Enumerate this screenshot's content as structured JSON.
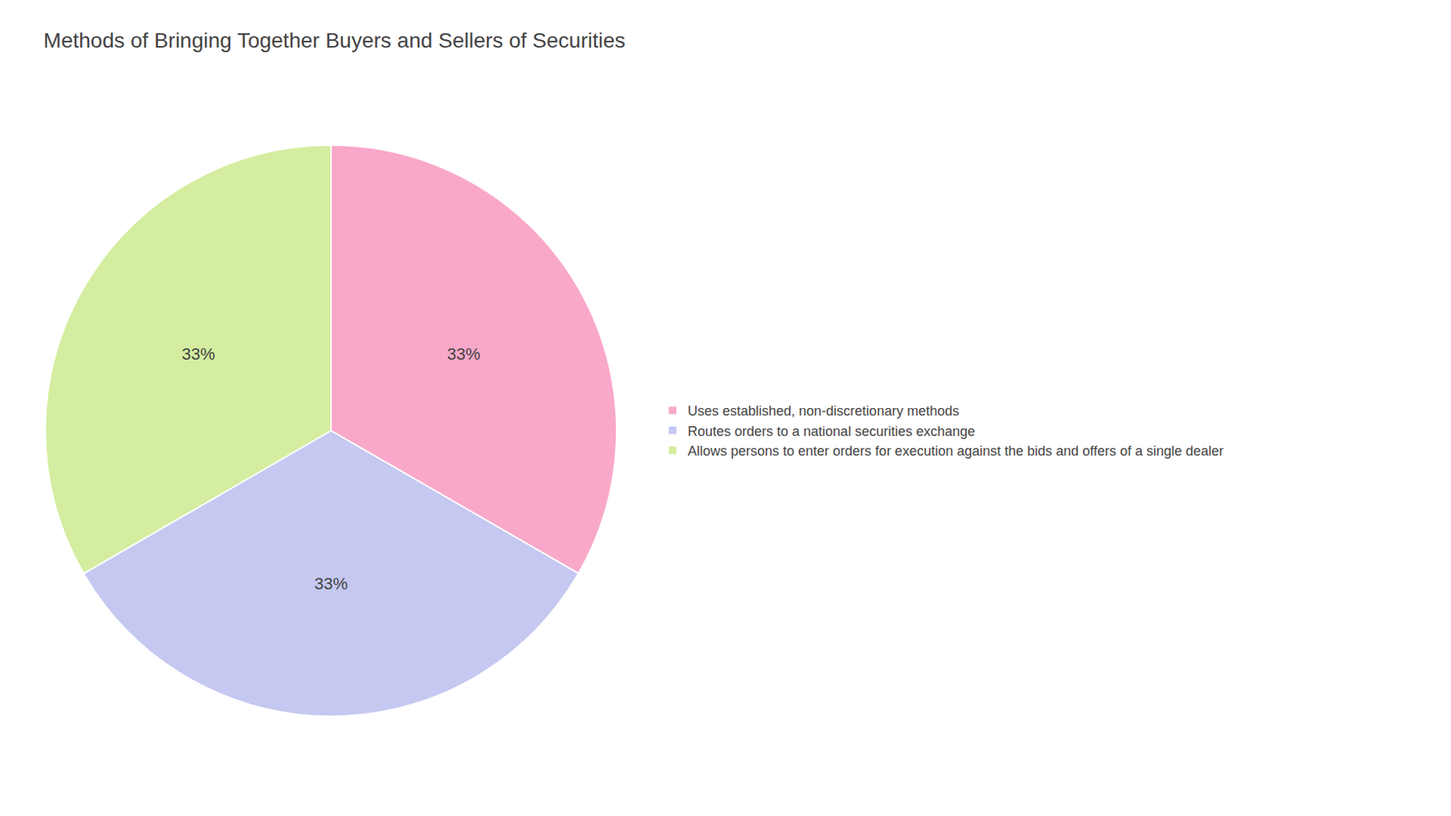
{
  "chart_data": {
    "type": "pie",
    "title": "Methods of Bringing Together Buyers and Sellers of Securities",
    "categories": [
      "Uses established, non-discretionary methods",
      "Routes orders to a national securities exchange",
      "Allows persons to enter orders for execution against the bids and offers of a single dealer"
    ],
    "values": [
      33.33,
      33.33,
      33.34
    ],
    "value_labels": [
      "33%",
      "33%",
      "33%"
    ],
    "colors": [
      "#F9A8C9",
      "#C5C8F0",
      "#D4EDA0"
    ],
    "data_labels": true,
    "legend": "right"
  }
}
